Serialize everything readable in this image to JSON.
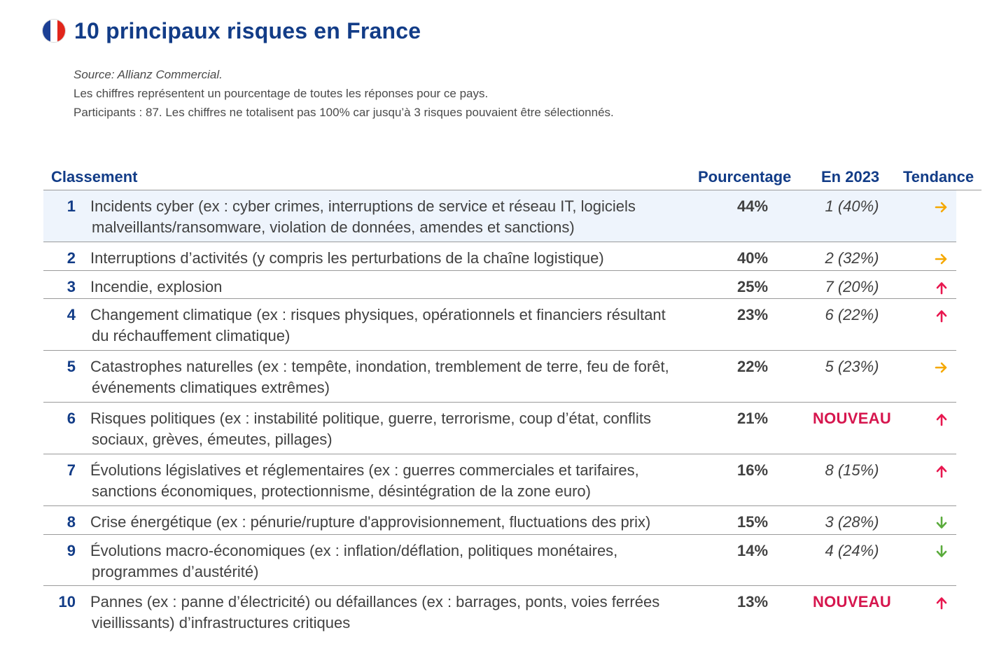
{
  "title": "10 principaux risques en France",
  "source": "Source: Allianz Commercial.",
  "note1": "Les chiffres représentent un pourcentage de toutes les réponses pour ce pays.",
  "note2": "Participants : 87. Les chiffres ne totalisent pas 100% car jusqu’à 3 risques pouvaient être sélectionnés.",
  "headers": {
    "rank": "Classement",
    "pct": "Pourcentage",
    "prev": "En 2023",
    "trend": "Tendance"
  },
  "trend_colors": {
    "flat": "#f5a800",
    "up": "#e8174f",
    "down": "#5aab3c"
  },
  "flag_colors": [
    "#1c3f94",
    "#ffffff",
    "#e1251b"
  ],
  "rows": [
    {
      "num": "1",
      "l1": "Incidents cyber (ex : cyber crimes, interruptions de service et réseau IT, logiciels",
      "l2": "malveillants/ransomware, violation de données, amendes et sanctions)",
      "pct": "44%",
      "prev": "1 (40%)",
      "trend": "flat",
      "trend_icon": "arrow-right-icon"
    },
    {
      "num": "2",
      "l1": "Interruptions d’activités (y compris les perturbations de la chaîne logistique)",
      "l2": "",
      "pct": "40%",
      "prev": "2 (32%)",
      "trend": "flat",
      "trend_icon": "arrow-right-icon"
    },
    {
      "num": "3",
      "l1": "Incendie, explosion",
      "l2": "",
      "pct": "25%",
      "prev": "7 (20%)",
      "trend": "up",
      "trend_icon": "arrow-up-icon"
    },
    {
      "num": "4",
      "l1": "Changement climatique (ex : risques physiques, opérationnels et financiers résultant",
      "l2": "du réchauffement climatique)",
      "pct": "23%",
      "prev": "6 (22%)",
      "trend": "up",
      "trend_icon": "arrow-up-icon"
    },
    {
      "num": "5",
      "l1": "Catastrophes naturelles (ex : tempête, inondation, tremblement de terre, feu de forêt,",
      "l2": "événements climatiques extrêmes)",
      "pct": "22%",
      "prev": "5 (23%)",
      "trend": "flat",
      "trend_icon": "arrow-right-icon"
    },
    {
      "num": "6",
      "l1": "Risques politiques (ex : instabilité politique, guerre, terrorisme, coup d’état, conflits",
      "l2": "sociaux, grèves, émeutes, pillages)",
      "pct": "21%",
      "prev": "NOUVEAU",
      "trend": "up",
      "trend_icon": "arrow-up-icon"
    },
    {
      "num": "7",
      "l1": "Évolutions législatives et réglementaires (ex : guerres commerciales et tarifaires,",
      "l2": "sanctions économiques, protectionnisme, désintégration de la zone euro)",
      "pct": "16%",
      "prev": "8 (15%)",
      "trend": "up",
      "trend_icon": "arrow-up-icon"
    },
    {
      "num": "8",
      "l1": "Crise énergétique (ex : pénurie/rupture d'approvisionnement, fluctuations des prix)",
      "l2": "",
      "pct": "15%",
      "prev": "3 (28%)",
      "trend": "down",
      "trend_icon": "arrow-down-icon"
    },
    {
      "num": "9",
      "l1": "Évolutions macro-économiques (ex : inflation/déflation, politiques monétaires,",
      "l2": "programmes d’austérité)",
      "pct": "14%",
      "prev": "4 (24%)",
      "trend": "down",
      "trend_icon": "arrow-down-icon"
    },
    {
      "num": "10",
      "l1": "Pannes (ex  : panne d’électricité) ou défaillances (ex  : barrages, ponts, voies ferrées",
      "l2": "vieillissants) d’infrastructures critiques",
      "pct": "13%",
      "prev": "NOUVEAU",
      "trend": "up",
      "trend_icon": "arrow-up-icon"
    }
  ]
}
